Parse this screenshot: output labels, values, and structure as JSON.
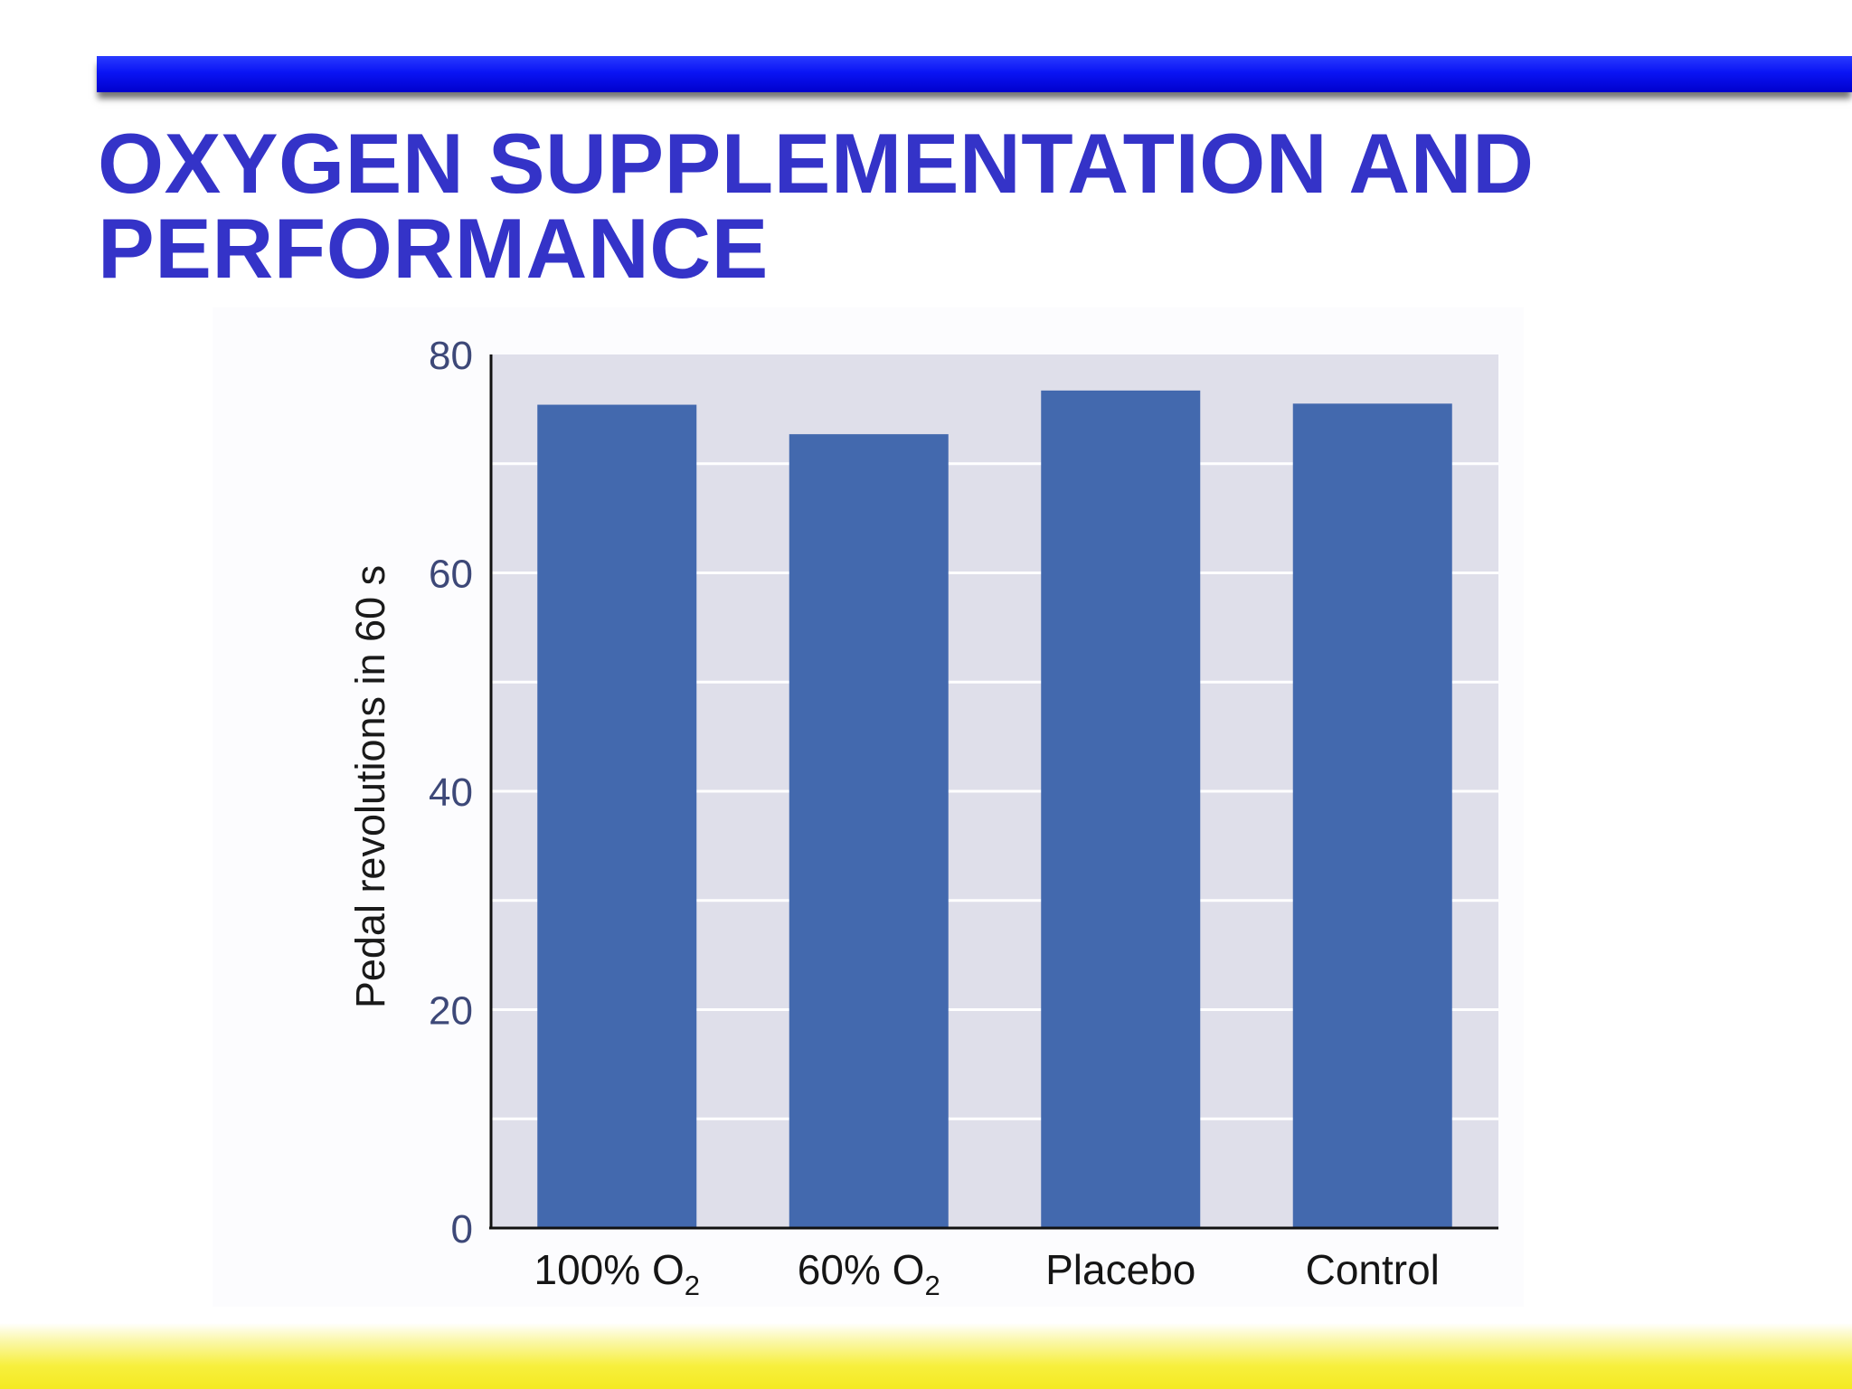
{
  "slide": {
    "title": "OXYGEN SUPPLEMENTATION AND PERFORMANCE"
  },
  "colors": {
    "title": "#3433c8",
    "top_rule": "#0a14f5",
    "bottom_band": "#f4ea22",
    "plot_background": "#dfdfea",
    "bar": "#4369ae"
  },
  "chart_data": {
    "type": "bar",
    "ylabel": "Pedal revolutions in 60 s",
    "ylim": [
      0,
      80
    ],
    "yticks": [
      0,
      20,
      40,
      60,
      80
    ],
    "grid": true,
    "categories": [
      {
        "main": "100% O",
        "sub": "2"
      },
      {
        "main": "60% O",
        "sub": "2"
      },
      {
        "main": "Placebo",
        "sub": ""
      },
      {
        "main": "Control",
        "sub": ""
      }
    ],
    "values": [
      75.4,
      72.7,
      76.7,
      75.5
    ]
  }
}
